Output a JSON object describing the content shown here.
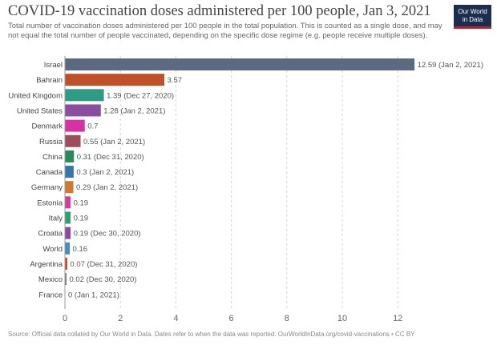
{
  "header": {
    "title": "COVID-19 vaccination doses administered per 100 people, Jan 3, 2021",
    "subtitle": "Total number of vaccination doses administered per 100 people in the total population. This is counted as a single dose, and may not equal the total number of people vaccinated, depending on the specific dose regime (e.g. people receive multiple doses).",
    "logo_line1": "Our World",
    "logo_line2": "in Data"
  },
  "footer": {
    "source": "Source: Official data collated by Our World in Data. Dates refer to when the data was reported. OurWorldInData.org/covid-vaccinations • CC BY"
  },
  "chart_data": {
    "type": "bar",
    "orientation": "horizontal",
    "categories": [
      "Israel",
      "Bahrain",
      "United Kingdom",
      "United States",
      "Denmark",
      "Russia",
      "China",
      "Canada",
      "Germany",
      "Estonia",
      "Italy",
      "Croatia",
      "World",
      "Argentina",
      "Mexico",
      "France"
    ],
    "values": [
      12.59,
      3.57,
      1.39,
      1.28,
      0.7,
      0.55,
      0.31,
      0.3,
      0.29,
      0.19,
      0.19,
      0.19,
      0.16,
      0.07,
      0.02,
      0
    ],
    "value_labels": [
      "12.59 (Jan 2, 2021)",
      "3.57",
      "1.39 (Dec 27, 2020)",
      "1.28 (Jan 2, 2021)",
      "0.7",
      "0.55 (Jan 2, 2021)",
      "0.31 (Dec 31, 2020)",
      "0.3 (Jan 2, 2021)",
      "0.29 (Jan 2, 2021)",
      "0.19",
      "0.19",
      "0.19 (Dec 30, 2020)",
      "0.16",
      "0.07 (Dec 31, 2020)",
      "0.02 (Dec 30, 2020)",
      "0 (Jan 1, 2021)"
    ],
    "colors": [
      "#5b6a82",
      "#c0502a",
      "#2e9a88",
      "#8a4ea0",
      "#d632a6",
      "#9c4f5a",
      "#2a8a5e",
      "#3278a8",
      "#d07a2e",
      "#d63a9a",
      "#2fa070",
      "#8f4a9e",
      "#3f8fc4",
      "#c84a24",
      "#7c7c7c",
      "#2e5a9a"
    ],
    "xlim": [
      0,
      13
    ],
    "xticks": [
      0,
      2,
      4,
      6,
      8,
      10,
      12
    ],
    "grid": "vertical dashed"
  }
}
